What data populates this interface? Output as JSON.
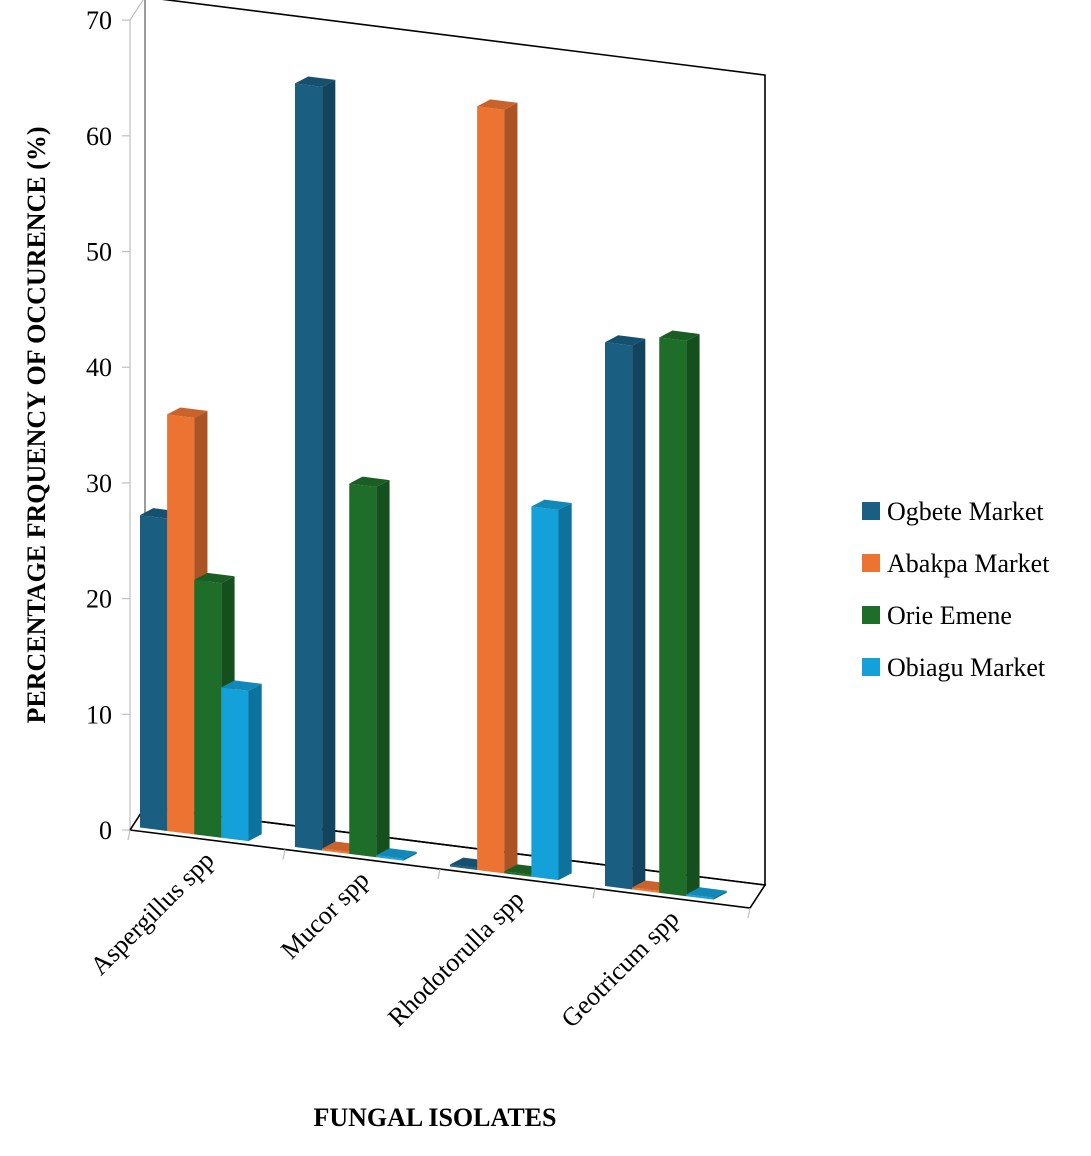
{
  "chart_data": {
    "type": "bar",
    "style": "3d-clustered-column",
    "title": "",
    "xlabel": "FUNGAL ISOLATES",
    "ylabel": "PERCENTAGE FRQUENCY OF OCCURENCE (%)",
    "ylim": [
      0,
      70
    ],
    "yticks": [
      0,
      10,
      20,
      30,
      40,
      50,
      60,
      70
    ],
    "grid": false,
    "legend_position": "right",
    "categories": [
      "Aspergillus spp",
      "Mucor spp",
      "Rhodotorulla spp",
      "Geotricum spp"
    ],
    "series": [
      {
        "name": "Ogbete Market",
        "color": "#1a5e82",
        "values": [
          27,
          66,
          0,
          47
        ]
      },
      {
        "name": "Abakpa Market",
        "color": "#ec7332",
        "values": [
          36,
          0,
          66,
          0
        ]
      },
      {
        "name": "Orie Emene",
        "color": "#1e6e2a",
        "values": [
          22,
          32,
          0,
          48
        ]
      },
      {
        "name": "Obiagu Market",
        "color": "#14a0d8",
        "values": [
          13,
          0,
          32,
          0
        ]
      }
    ]
  }
}
